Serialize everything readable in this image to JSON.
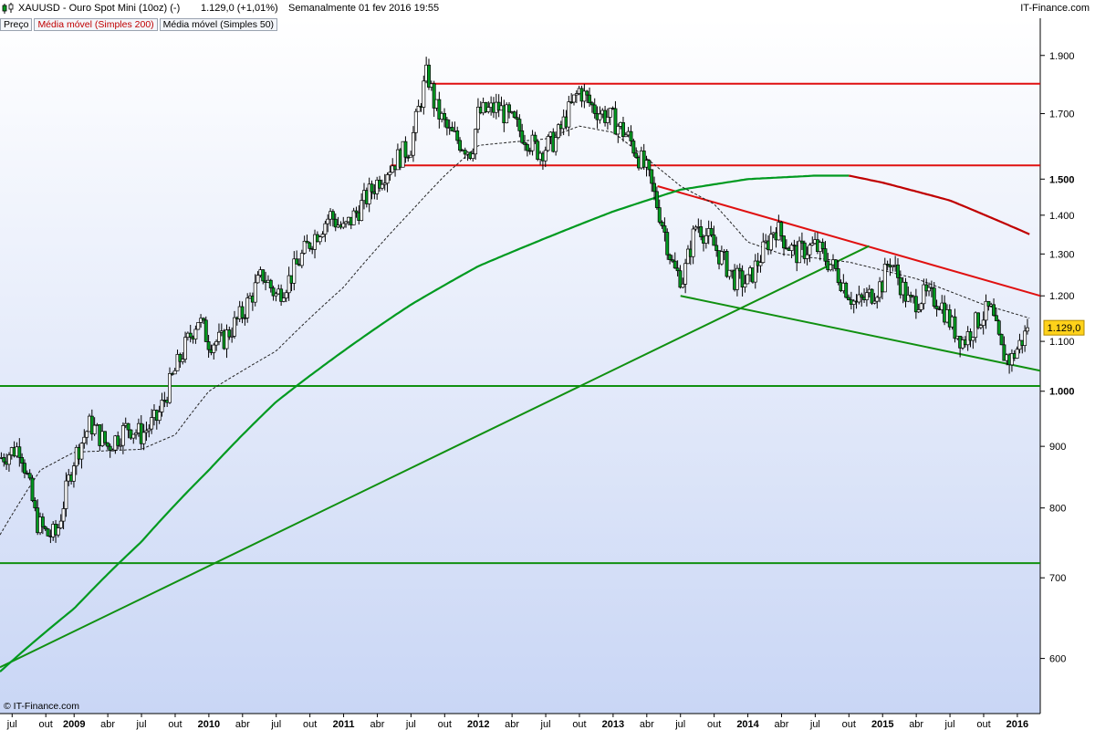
{
  "header": {
    "symbol": "XAUUSD - Ouro Spot Mini (10oz) (-)",
    "price": "1.129,0 (+1,01%)",
    "period": "Semanalmente  01 fev 2016 19:55",
    "brand": "IT-Finance.com"
  },
  "legend": {
    "items": [
      {
        "label": "Preço",
        "color": "#000000"
      },
      {
        "label": "Média móvel (Simples 200)",
        "color": "#c00000"
      },
      {
        "label": "Média móvel (Simples 50)",
        "color": "#000000"
      }
    ]
  },
  "footer": {
    "copyright": "© IT-Finance.com"
  },
  "chart_data": {
    "type": "candlestick",
    "title": "XAUUSD - Ouro Spot Mini (10oz) (-)",
    "scale": "log",
    "ylim": [
      540,
      2040
    ],
    "y_ticks": [
      {
        "value": 1900,
        "label": "1.900",
        "bold": false
      },
      {
        "value": 1700,
        "label": "1.700",
        "bold": false
      },
      {
        "value": 1500,
        "label": "1.500",
        "bold": true
      },
      {
        "value": 1400,
        "label": "1.400",
        "bold": false
      },
      {
        "value": 1300,
        "label": "1.300",
        "bold": false
      },
      {
        "value": 1200,
        "label": "1.200",
        "bold": false
      },
      {
        "value": 1100,
        "label": "1.100",
        "bold": false
      },
      {
        "value": 1000,
        "label": "1.000",
        "bold": true
      },
      {
        "value": 900,
        "label": "900",
        "bold": false
      },
      {
        "value": 800,
        "label": "800",
        "bold": false
      },
      {
        "value": 700,
        "label": "700",
        "bold": false
      },
      {
        "value": 600,
        "label": "600",
        "bold": false
      }
    ],
    "x_range": [
      2008.45,
      2016.17
    ],
    "x_ticks": [
      {
        "t": 2008.54,
        "label": "jul",
        "bold": false
      },
      {
        "t": 2008.79,
        "label": "out",
        "bold": false
      },
      {
        "t": 2009.0,
        "label": "2009",
        "bold": true
      },
      {
        "t": 2009.25,
        "label": "abr",
        "bold": false
      },
      {
        "t": 2009.5,
        "label": "jul",
        "bold": false
      },
      {
        "t": 2009.75,
        "label": "out",
        "bold": false
      },
      {
        "t": 2010.0,
        "label": "2010",
        "bold": true
      },
      {
        "t": 2010.25,
        "label": "abr",
        "bold": false
      },
      {
        "t": 2010.5,
        "label": "jul",
        "bold": false
      },
      {
        "t": 2010.75,
        "label": "out",
        "bold": false
      },
      {
        "t": 2011.0,
        "label": "2011",
        "bold": true
      },
      {
        "t": 2011.25,
        "label": "abr",
        "bold": false
      },
      {
        "t": 2011.5,
        "label": "jul",
        "bold": false
      },
      {
        "t": 2011.75,
        "label": "out",
        "bold": false
      },
      {
        "t": 2012.0,
        "label": "2012",
        "bold": true
      },
      {
        "t": 2012.25,
        "label": "abr",
        "bold": false
      },
      {
        "t": 2012.5,
        "label": "jul",
        "bold": false
      },
      {
        "t": 2012.75,
        "label": "out",
        "bold": false
      },
      {
        "t": 2013.0,
        "label": "2013",
        "bold": true
      },
      {
        "t": 2013.25,
        "label": "abr",
        "bold": false
      },
      {
        "t": 2013.5,
        "label": "jul",
        "bold": false
      },
      {
        "t": 2013.75,
        "label": "out",
        "bold": false
      },
      {
        "t": 2014.0,
        "label": "2014",
        "bold": true
      },
      {
        "t": 2014.25,
        "label": "abr",
        "bold": false
      },
      {
        "t": 2014.5,
        "label": "jul",
        "bold": false
      },
      {
        "t": 2014.75,
        "label": "out",
        "bold": false
      },
      {
        "t": 2015.0,
        "label": "2015",
        "bold": true
      },
      {
        "t": 2015.25,
        "label": "abr",
        "bold": false
      },
      {
        "t": 2015.5,
        "label": "jul",
        "bold": false
      },
      {
        "t": 2015.75,
        "label": "out",
        "bold": false
      },
      {
        "t": 2016.0,
        "label": "2016",
        "bold": true
      }
    ],
    "last_price": {
      "value": 1129.0,
      "label": "1.129,0"
    },
    "price_path": [
      [
        2008.45,
        880
      ],
      [
        2008.6,
        900
      ],
      [
        2008.72,
        780
      ],
      [
        2008.8,
        760
      ],
      [
        2008.87,
        760
      ],
      [
        2009.0,
        880
      ],
      [
        2009.12,
        940
      ],
      [
        2009.25,
        900
      ],
      [
        2009.4,
        935
      ],
      [
        2009.5,
        920
      ],
      [
        2009.62,
        950
      ],
      [
        2009.75,
        1040
      ],
      [
        2009.92,
        1150
      ],
      [
        2010.0,
        1100
      ],
      [
        2010.1,
        1100
      ],
      [
        2010.25,
        1160
      ],
      [
        2010.4,
        1250
      ],
      [
        2010.5,
        1200
      ],
      [
        2010.6,
        1240
      ],
      [
        2010.75,
        1330
      ],
      [
        2010.9,
        1400
      ],
      [
        2011.0,
        1360
      ],
      [
        2011.12,
        1420
      ],
      [
        2011.3,
        1520
      ],
      [
        2011.5,
        1600
      ],
      [
        2011.62,
        1840
      ],
      [
        2011.68,
        1720
      ],
      [
        2011.78,
        1640
      ],
      [
        2011.95,
        1580
      ],
      [
        2012.0,
        1700
      ],
      [
        2012.15,
        1720
      ],
      [
        2012.3,
        1650
      ],
      [
        2012.45,
        1580
      ],
      [
        2012.58,
        1620
      ],
      [
        2012.75,
        1780
      ],
      [
        2012.85,
        1720
      ],
      [
        2013.0,
        1680
      ],
      [
        2013.12,
        1620
      ],
      [
        2013.25,
        1520
      ],
      [
        2013.35,
        1400
      ],
      [
        2013.45,
        1260
      ],
      [
        2013.52,
        1240
      ],
      [
        2013.62,
        1380
      ],
      [
        2013.75,
        1320
      ],
      [
        2013.9,
        1240
      ],
      [
        2014.0,
        1230
      ],
      [
        2014.15,
        1330
      ],
      [
        2014.2,
        1370
      ],
      [
        2014.35,
        1300
      ],
      [
        2014.5,
        1320
      ],
      [
        2014.65,
        1260
      ],
      [
        2014.8,
        1180
      ],
      [
        2014.9,
        1200
      ],
      [
        2015.0,
        1230
      ],
      [
        2015.05,
        1290
      ],
      [
        2015.2,
        1180
      ],
      [
        2015.3,
        1200
      ],
      [
        2015.42,
        1190
      ],
      [
        2015.52,
        1130
      ],
      [
        2015.6,
        1100
      ],
      [
        2015.72,
        1150
      ],
      [
        2015.8,
        1170
      ],
      [
        2015.88,
        1080
      ],
      [
        2015.95,
        1060
      ],
      [
        2016.03,
        1100
      ],
      [
        2016.09,
        1129
      ]
    ],
    "series": [
      {
        "name": "Média móvel (Simples 200)",
        "color": "#009a20",
        "late_color": "#c00000",
        "points": [
          [
            2008.45,
            585
          ],
          [
            2009.0,
            660
          ],
          [
            2009.5,
            750
          ],
          [
            2010.0,
            860
          ],
          [
            2010.5,
            980
          ],
          [
            2011.0,
            1080
          ],
          [
            2011.5,
            1180
          ],
          [
            2012.0,
            1270
          ],
          [
            2012.5,
            1340
          ],
          [
            2013.0,
            1410
          ],
          [
            2013.5,
            1470
          ],
          [
            2014.0,
            1500
          ],
          [
            2014.5,
            1510
          ],
          [
            2014.75,
            1510
          ],
          [
            2015.0,
            1490
          ],
          [
            2015.5,
            1440
          ],
          [
            2016.09,
            1350
          ]
        ]
      },
      {
        "name": "Média móvel (Simples 50)",
        "color": "#222222",
        "points": [
          [
            2008.45,
            760
          ],
          [
            2008.75,
            860
          ],
          [
            2009.0,
            890
          ],
          [
            2009.5,
            895
          ],
          [
            2009.75,
            920
          ],
          [
            2010.0,
            1000
          ],
          [
            2010.5,
            1080
          ],
          [
            2011.0,
            1220
          ],
          [
            2011.5,
            1410
          ],
          [
            2011.75,
            1510
          ],
          [
            2012.0,
            1600
          ],
          [
            2012.5,
            1620
          ],
          [
            2012.75,
            1660
          ],
          [
            2013.0,
            1640
          ],
          [
            2013.25,
            1560
          ],
          [
            2013.5,
            1480
          ],
          [
            2013.75,
            1430
          ],
          [
            2014.0,
            1330
          ],
          [
            2014.25,
            1300
          ],
          [
            2014.5,
            1290
          ],
          [
            2014.75,
            1280
          ],
          [
            2015.0,
            1260
          ],
          [
            2015.25,
            1240
          ],
          [
            2015.5,
            1210
          ],
          [
            2015.75,
            1180
          ],
          [
            2016.09,
            1150
          ]
        ]
      }
    ],
    "lines": [
      {
        "kind": "horizontal",
        "value": 1800,
        "x0": 2011.65,
        "x1": 2016.17,
        "color": "#e01010"
      },
      {
        "kind": "horizontal",
        "value": 1540,
        "x0": 2011.35,
        "x1": 2016.17,
        "color": "#e01010"
      },
      {
        "kind": "horizontal",
        "value": 1010,
        "x0": 2008.45,
        "x1": 2016.17,
        "color": "#109010"
      },
      {
        "kind": "horizontal",
        "value": 720,
        "x0": 2008.45,
        "x1": 2016.17,
        "color": "#109010"
      },
      {
        "kind": "trend",
        "t0": 2013.33,
        "v0": 1480,
        "t1": 2016.17,
        "v1": 1200,
        "color": "#e01010"
      },
      {
        "kind": "trend",
        "t0": 2013.5,
        "v0": 1200,
        "t1": 2016.17,
        "v1": 1040,
        "color": "#109010"
      },
      {
        "kind": "trend",
        "t0": 2008.45,
        "v0": 590,
        "t1": 2014.9,
        "v1": 1320,
        "color": "#109010"
      }
    ]
  }
}
